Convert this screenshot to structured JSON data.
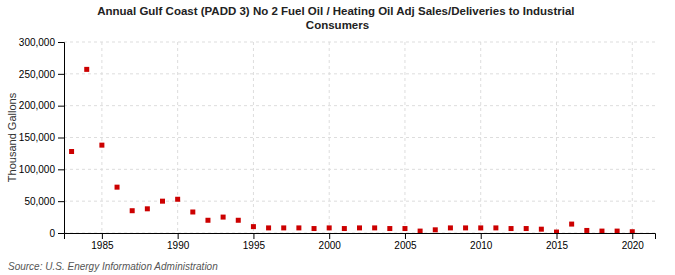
{
  "chart_data": {
    "type": "scatter",
    "title": "Annual Gulf Coast (PADD 3) No 2 Fuel Oil / Heating Oil Adj Sales/Deliveries to Industrial\nConsumers",
    "ylabel": "Thousand Gallons",
    "source": "Source: U.S. Energy Information Administration",
    "color": "#cc0000",
    "marker": "square",
    "grid": true,
    "xlim": [
      1982.5,
      2021.5
    ],
    "xticks": [
      1985,
      1990,
      1995,
      2000,
      2005,
      2010,
      2015,
      2020
    ],
    "ylim": [
      0,
      300000
    ],
    "yticks": [
      0,
      {
        "value": 50000,
        "label": "50,000"
      },
      {
        "value": 100000,
        "label": "100,000"
      },
      {
        "value": 150000,
        "label": "150,000"
      },
      {
        "value": 200000,
        "label": "200,000"
      },
      {
        "value": 250000,
        "label": "250,000"
      },
      {
        "value": 300000,
        "label": "300,000"
      }
    ],
    "x": [
      1983,
      1984,
      1985,
      1986,
      1987,
      1988,
      1989,
      1990,
      1991,
      1992,
      1993,
      1994,
      1995,
      1996,
      1997,
      1998,
      1999,
      2000,
      2001,
      2002,
      2003,
      2004,
      2005,
      2006,
      2007,
      2008,
      2009,
      2010,
      2011,
      2012,
      2013,
      2014,
      2015,
      2016,
      2017,
      2018,
      2019,
      2020
    ],
    "values": [
      128000,
      257000,
      138000,
      72000,
      35000,
      38000,
      50000,
      53000,
      33000,
      20000,
      25000,
      20000,
      10000,
      8000,
      8000,
      8000,
      7000,
      8000,
      7000,
      8000,
      8000,
      7000,
      7000,
      3000,
      5000,
      8000,
      8000,
      8000,
      8000,
      7000,
      7000,
      6000,
      1500,
      14000,
      4000,
      3000,
      3000,
      2000
    ]
  }
}
